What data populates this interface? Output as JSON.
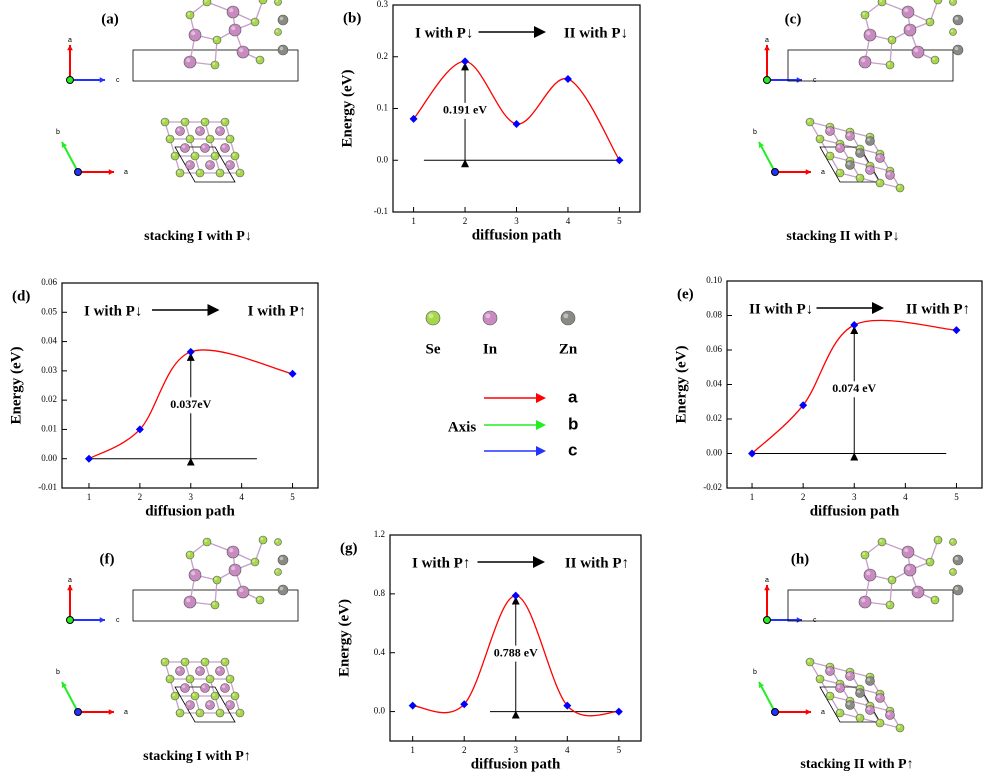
{
  "chart_data": [
    {
      "type": "line",
      "panel": "(b)",
      "title_left": "I with P↓",
      "title_right": "II with P↓",
      "barrier_label": "0.191 eV",
      "xlabel": "diffusion path",
      "ylabel": "Energy (eV)",
      "line_color": "#ff0000",
      "marker_color": "#0000ff",
      "x": [
        1,
        2,
        3,
        4,
        5
      ],
      "values": [
        0.08,
        0.191,
        0.07,
        0.157,
        0.0
      ],
      "xlim": [
        0.6,
        5.4
      ],
      "xticks": [
        1,
        2,
        3,
        4,
        5
      ],
      "ylim": [
        -0.1,
        0.3
      ],
      "yticks": [
        {
          "value": -0.1,
          "label": "-0.1"
        },
        {
          "value": 0.0,
          "label": "0.0"
        },
        {
          "value": 0.1,
          "label": "0.1"
        },
        {
          "value": 0.2,
          "label": "0.2"
        },
        {
          "value": 0.3,
          "label": "0.3"
        }
      ]
    },
    {
      "type": "line",
      "panel": "(d)",
      "title_left": "I with P↓",
      "title_right": "I with P↑",
      "barrier_label": "0.037eV",
      "xlabel": "diffusion path",
      "ylabel": "Energy (eV)",
      "line_color": "#ff0000",
      "marker_color": "#0000ff",
      "x": [
        1,
        2,
        3,
        5
      ],
      "values": [
        0.0,
        0.01,
        0.0365,
        0.029
      ],
      "xlim": [
        0.47,
        5.5
      ],
      "xticks": [
        1,
        2,
        3,
        4,
        5
      ],
      "ylim": [
        -0.01,
        0.06
      ],
      "yticks": [
        {
          "value": -0.01,
          "label": "-0.01"
        },
        {
          "value": 0.0,
          "label": "0.00"
        },
        {
          "value": 0.01,
          "label": "0.01"
        },
        {
          "value": 0.02,
          "label": "0.02"
        },
        {
          "value": 0.03,
          "label": "0.03"
        },
        {
          "value": 0.04,
          "label": "0.04"
        },
        {
          "value": 0.05,
          "label": "0.05"
        },
        {
          "value": 0.06,
          "label": "0.06"
        }
      ]
    },
    {
      "type": "line",
      "panel": "(e)",
      "title_left": "II with P↓",
      "title_right": "II with P↑",
      "barrier_label": "0.074 eV",
      "xlabel": "diffusion path",
      "ylabel": "Energy (eV)",
      "line_color": "#ff0000",
      "marker_color": "#0000ff",
      "x": [
        1,
        2,
        3,
        5
      ],
      "values": [
        0.0,
        0.028,
        0.0745,
        0.0715
      ],
      "xlim": [
        0.51,
        5.5
      ],
      "xticks": [
        1,
        2,
        3,
        4,
        5
      ],
      "ylim": [
        -0.02,
        0.1
      ],
      "yticks": [
        {
          "value": -0.02,
          "label": "-0.02"
        },
        {
          "value": 0.0,
          "label": "0.00"
        },
        {
          "value": 0.02,
          "label": "0.02"
        },
        {
          "value": 0.04,
          "label": "0.04"
        },
        {
          "value": 0.06,
          "label": "0.06"
        },
        {
          "value": 0.08,
          "label": "0.08"
        },
        {
          "value": 0.1,
          "label": "0.10"
        }
      ]
    },
    {
      "type": "line",
      "panel": "(g)",
      "title_left": "I with P↑",
      "title_right": "II with P↑",
      "barrier_label": "0.788 eV",
      "xlabel": "diffusion path",
      "ylabel": "Energy (eV)",
      "line_color": "#ff0000",
      "marker_color": "#0000ff",
      "x": [
        1,
        2,
        3,
        4,
        5
      ],
      "values": [
        0.04,
        0.05,
        0.788,
        0.04,
        0.0
      ],
      "xlim": [
        0.56,
        5.43
      ],
      "xticks": [
        1,
        2,
        3,
        4,
        5
      ],
      "ylim": [
        -0.2,
        1.2
      ],
      "yticks": [
        {
          "value": 0.0,
          "label": "0.0"
        },
        {
          "value": 0.4,
          "label": "0.4"
        },
        {
          "value": 0.8,
          "label": "0.8"
        },
        {
          "value": 1.2,
          "label": "1.2"
        }
      ]
    }
  ],
  "structures": [
    {
      "panel": "(a)",
      "caption": "stacking I with P↓"
    },
    {
      "panel": "(c)",
      "caption": "stacking II with P↓"
    },
    {
      "panel": "(f)",
      "caption": "stacking I with P↑"
    },
    {
      "panel": "(h)",
      "caption": "stacking II with P↑"
    }
  ],
  "axis_glyph_labels": [
    "a",
    "b",
    "c"
  ],
  "legend": {
    "atoms": [
      {
        "name": "Se",
        "color": "#a6d64a"
      },
      {
        "name": "In",
        "color": "#c88ac0"
      },
      {
        "name": "Zn",
        "color": "#8a8a84"
      }
    ],
    "axis_title": "Axis",
    "axes": [
      {
        "name": "a",
        "color": "#ff0000"
      },
      {
        "name": "b",
        "color": "#22ee22"
      },
      {
        "name": "c",
        "color": "#2233ff"
      }
    ]
  }
}
